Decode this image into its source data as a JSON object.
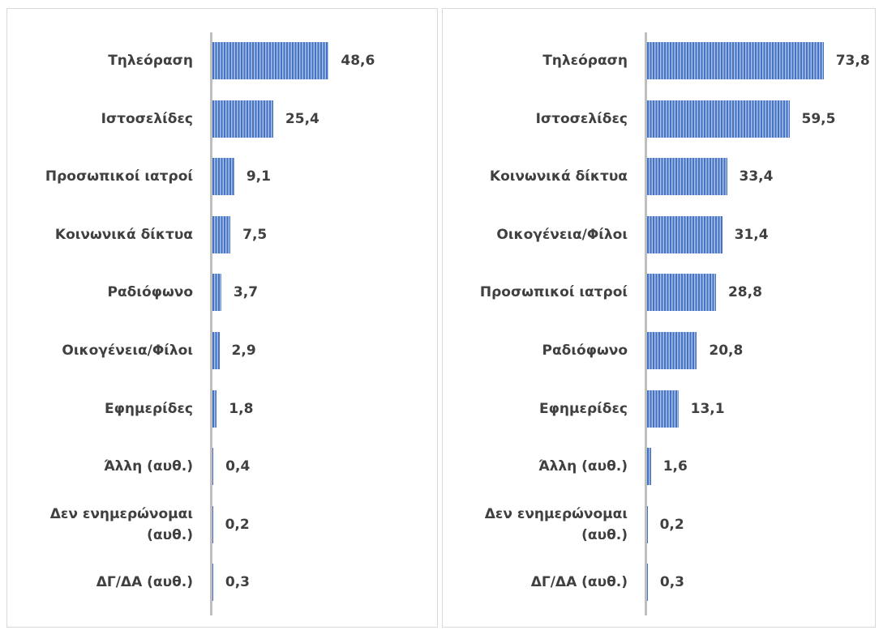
{
  "chart_data": [
    {
      "type": "bar",
      "orientation": "horizontal",
      "color": "#4472c4",
      "categories": [
        "Τηλεόραση",
        "Ιστοσελίδες",
        "Προσωπικοί ιατροί",
        "Κοινωνικά δίκτυα",
        "Ραδιόφωνο",
        "Οικογένεια/Φίλοι",
        "Εφημερίδες",
        "Άλλη (αυθ.)",
        "Δεν ενημερώνομαι (αυθ.)",
        "ΔΓ/ΔΑ (αυθ.)"
      ],
      "values": [
        48.6,
        25.4,
        9.1,
        7.5,
        3.7,
        2.9,
        1.8,
        0.4,
        0.2,
        0.3
      ],
      "value_labels": [
        "48,6",
        "25,4",
        "9,1",
        "7,5",
        "3,7",
        "2,9",
        "1,8",
        "0,4",
        "0,2",
        "0,3"
      ]
    },
    {
      "type": "bar",
      "orientation": "horizontal",
      "color": "#4472c4",
      "categories": [
        "Τηλεόραση",
        "Ιστοσελίδες",
        "Κοινωνικά δίκτυα",
        "Οικογένεια/Φίλοι",
        "Προσωπικοί ιατροί",
        "Ραδιόφωνο",
        "Εφημερίδες",
        "Άλλη (αυθ.)",
        "Δεν ενημερώνομαι (αυθ.)",
        "ΔΓ/ΔΑ (αυθ.)"
      ],
      "values": [
        73.8,
        59.5,
        33.4,
        31.4,
        28.8,
        20.8,
        13.1,
        1.6,
        0.2,
        0.3
      ],
      "value_labels": [
        "73,8",
        "59,5",
        "33,4",
        "31,4",
        "28,8",
        "20,8",
        "13,1",
        "1,6",
        "0,2",
        "0,3"
      ]
    }
  ]
}
